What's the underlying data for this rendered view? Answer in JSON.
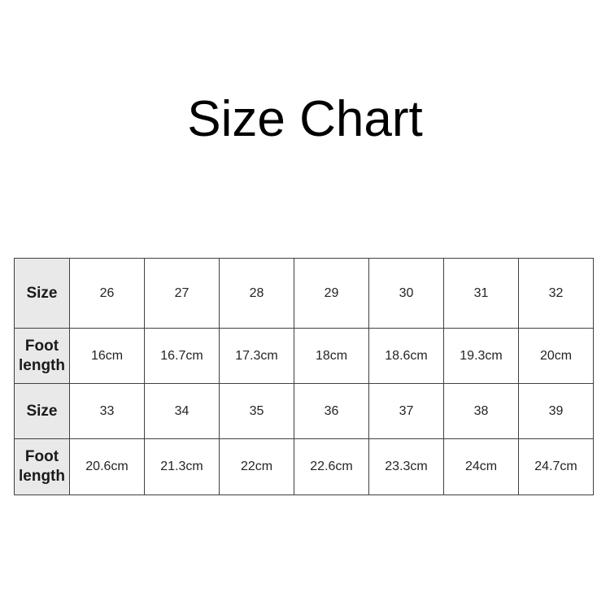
{
  "page": {
    "title": "Size Chart"
  },
  "colors": {
    "header_bg": "#e9e9e9",
    "border": "#404040",
    "title_text": "#000000",
    "header_text": "#1a1a1a",
    "cell_text": "#242424"
  },
  "table": {
    "rows": [
      {
        "header": "Size",
        "cells": [
          "26",
          "27",
          "28",
          "29",
          "30",
          "31",
          "32"
        ]
      },
      {
        "header": "Foot length",
        "cells": [
          "16cm",
          "16.7cm",
          "17.3cm",
          "18cm",
          "18.6cm",
          "19.3cm",
          "20cm"
        ]
      },
      {
        "header": "Size",
        "cells": [
          "33",
          "34",
          "35",
          "36",
          "37",
          "38",
          "39"
        ]
      },
      {
        "header": "Foot length",
        "cells": [
          "20.6cm",
          "21.3cm",
          "22cm",
          "22.6cm",
          "23.3cm",
          "24cm",
          "24.7cm"
        ]
      }
    ]
  },
  "chart_data": {
    "type": "table",
    "title": "Size Chart",
    "columns": [
      "Size",
      "Foot length"
    ],
    "records": [
      {
        "size": 26,
        "foot_length_cm": 16
      },
      {
        "size": 27,
        "foot_length_cm": 16.7
      },
      {
        "size": 28,
        "foot_length_cm": 17.3
      },
      {
        "size": 29,
        "foot_length_cm": 18
      },
      {
        "size": 30,
        "foot_length_cm": 18.6
      },
      {
        "size": 31,
        "foot_length_cm": 19.3
      },
      {
        "size": 32,
        "foot_length_cm": 20
      },
      {
        "size": 33,
        "foot_length_cm": 20.6
      },
      {
        "size": 34,
        "foot_length_cm": 21.3
      },
      {
        "size": 35,
        "foot_length_cm": 22
      },
      {
        "size": 36,
        "foot_length_cm": 22.6
      },
      {
        "size": 37,
        "foot_length_cm": 23.3
      },
      {
        "size": 38,
        "foot_length_cm": 24
      },
      {
        "size": 39,
        "foot_length_cm": 24.7
      }
    ]
  }
}
